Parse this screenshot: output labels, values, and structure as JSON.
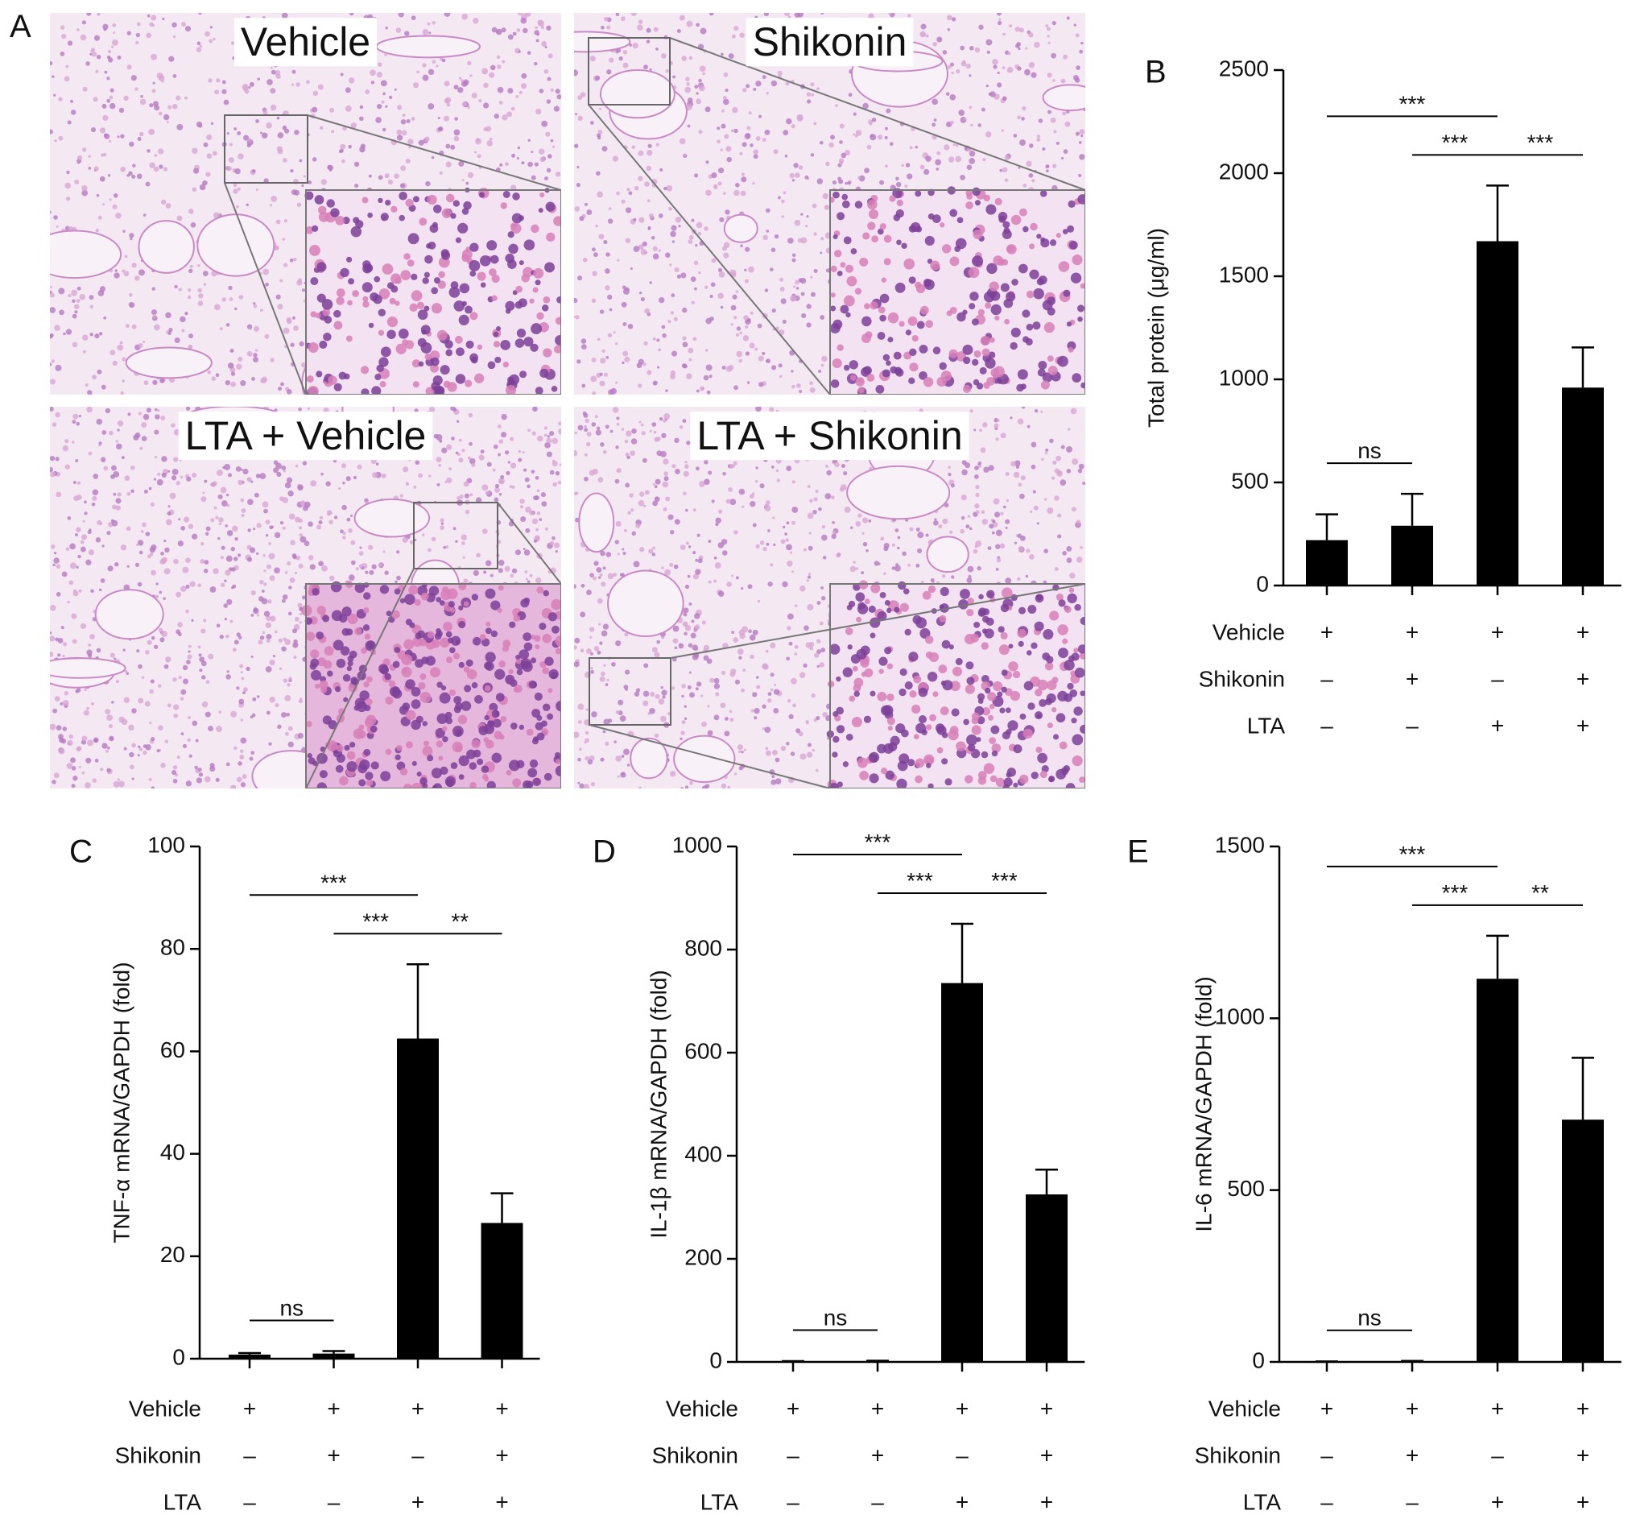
{
  "panel_a": {
    "label": "A",
    "images": [
      {
        "title": "Vehicle"
      },
      {
        "title": "Shikonin"
      },
      {
        "title": "LTA + Vehicle"
      },
      {
        "title": "LTA + Shikonin"
      }
    ]
  },
  "chart_data": [
    {
      "type": "bar",
      "panel": "B",
      "ylabel": "Total protein (μg/ml)",
      "values": [
        220,
        290,
        1670,
        960
      ],
      "errors": [
        125,
        155,
        270,
        195
      ],
      "color": "#000000",
      "ylim": [
        0,
        2500
      ],
      "yticks": [
        0,
        500,
        1000,
        1500,
        2000,
        2500
      ],
      "conditions": [
        {
          "name": "Vehicle",
          "signs": [
            "+",
            "+",
            "+",
            "+"
          ]
        },
        {
          "name": "Shikonin",
          "signs": [
            "–",
            "+",
            "–",
            "+"
          ]
        },
        {
          "name": "LTA",
          "signs": [
            "–",
            "–",
            "+",
            "+"
          ]
        }
      ],
      "significance": [
        {
          "label": "ns",
          "groups": [
            0,
            1
          ]
        },
        {
          "label": "***",
          "groups": [
            1,
            2
          ]
        },
        {
          "label": "***",
          "groups": [
            2,
            3
          ]
        },
        {
          "label": "***",
          "groups": [
            0,
            2
          ]
        }
      ]
    },
    {
      "type": "bar",
      "panel": "C",
      "ylabel": "TNF-α mRNA/GAPDH (fold)",
      "values": [
        0.8,
        1.0,
        62.5,
        26.5
      ],
      "errors": [
        0.3,
        0.5,
        14.5,
        5.8
      ],
      "color": "#000000",
      "ylim": [
        0,
        100
      ],
      "yticks": [
        0,
        20,
        40,
        60,
        80,
        100
      ],
      "conditions": [
        {
          "name": "Vehicle",
          "signs": [
            "+",
            "+",
            "+",
            "+"
          ]
        },
        {
          "name": "Shikonin",
          "signs": [
            "–",
            "+",
            "–",
            "+"
          ]
        },
        {
          "name": "LTA",
          "signs": [
            "–",
            "–",
            "+",
            "+"
          ]
        }
      ],
      "significance": [
        {
          "label": "ns",
          "groups": [
            0,
            1
          ]
        },
        {
          "label": "***",
          "groups": [
            1,
            2
          ]
        },
        {
          "label": "**",
          "groups": [
            2,
            3
          ]
        },
        {
          "label": "***",
          "groups": [
            0,
            2
          ]
        }
      ]
    },
    {
      "type": "bar",
      "panel": "D",
      "ylabel": "IL-1β mRNA/GAPDH (fold)",
      "values": [
        1,
        1.5,
        735,
        325
      ],
      "errors": [
        0.5,
        0.8,
        115,
        48
      ],
      "color": "#000000",
      "ylim": [
        0,
        1000
      ],
      "yticks": [
        0,
        200,
        400,
        600,
        800,
        1000
      ],
      "conditions": [
        {
          "name": "Vehicle",
          "signs": [
            "+",
            "+",
            "+",
            "+"
          ]
        },
        {
          "name": "Shikonin",
          "signs": [
            "–",
            "+",
            "–",
            "+"
          ]
        },
        {
          "name": "LTA",
          "signs": [
            "–",
            "–",
            "+",
            "+"
          ]
        }
      ],
      "significance": [
        {
          "label": "ns",
          "groups": [
            0,
            1
          ]
        },
        {
          "label": "***",
          "groups": [
            1,
            2
          ]
        },
        {
          "label": "***",
          "groups": [
            2,
            3
          ]
        },
        {
          "label": "***",
          "groups": [
            0,
            2
          ]
        }
      ]
    },
    {
      "type": "bar",
      "panel": "E",
      "ylabel": "IL-6 mRNA/GAPDH (fold)",
      "values": [
        1,
        2,
        1115,
        705
      ],
      "errors": [
        0.5,
        1,
        125,
        180
      ],
      "color": "#000000",
      "ylim": [
        0,
        1500
      ],
      "yticks": [
        0,
        500,
        1000,
        1500
      ],
      "conditions": [
        {
          "name": "Vehicle",
          "signs": [
            "+",
            "+",
            "+",
            "+"
          ]
        },
        {
          "name": "Shikonin",
          "signs": [
            "–",
            "+",
            "–",
            "+"
          ]
        },
        {
          "name": "LTA",
          "signs": [
            "–",
            "–",
            "+",
            "+"
          ]
        }
      ],
      "significance": [
        {
          "label": "ns",
          "groups": [
            0,
            1
          ]
        },
        {
          "label": "***",
          "groups": [
            1,
            2
          ]
        },
        {
          "label": "**",
          "groups": [
            2,
            3
          ]
        },
        {
          "label": "***",
          "groups": [
            0,
            2
          ]
        }
      ]
    }
  ]
}
